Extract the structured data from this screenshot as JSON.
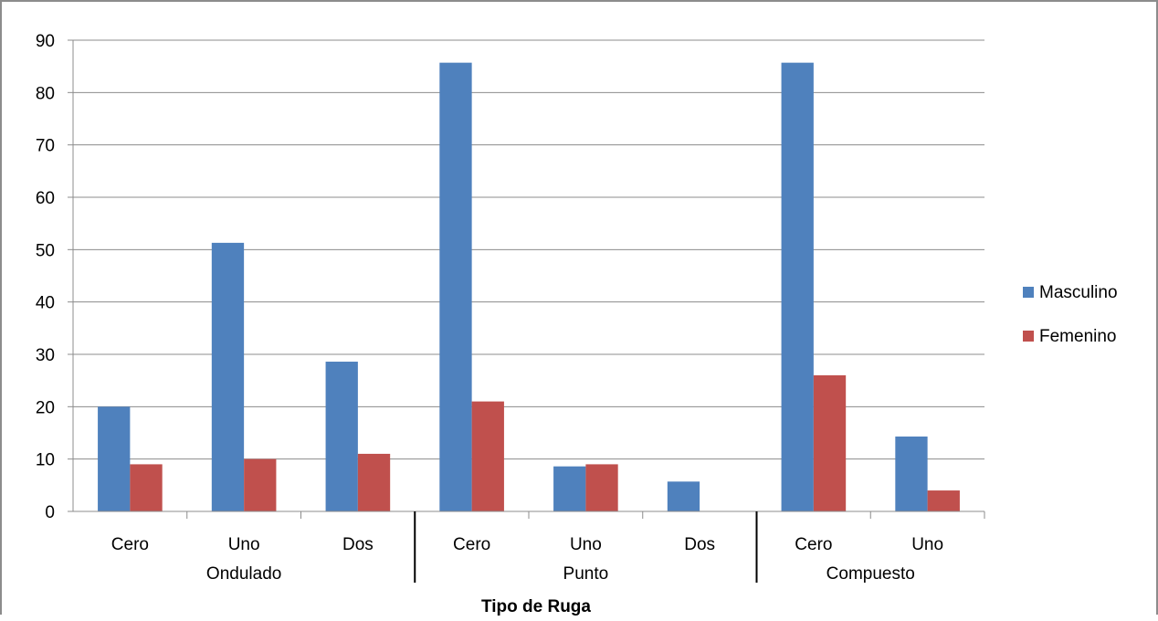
{
  "chart_data": {
    "type": "bar",
    "title": "",
    "xlabel": "Tipo de Ruga",
    "ylabel": "",
    "ylim": [
      0,
      90
    ],
    "yticks": [
      0,
      10,
      20,
      30,
      40,
      50,
      60,
      70,
      80,
      90
    ],
    "grid": true,
    "legend_position": "right",
    "categories": [
      "Cero",
      "Uno",
      "Dos",
      "Cero",
      "Uno",
      "Dos",
      "Cero",
      "Uno"
    ],
    "groups": [
      {
        "label": "Ondulado",
        "categories": [
          "Cero",
          "Uno",
          "Dos"
        ]
      },
      {
        "label": "Punto",
        "categories": [
          "Cero",
          "Uno",
          "Dos"
        ]
      },
      {
        "label": "Compuesto",
        "categories": [
          "Cero",
          "Uno"
        ]
      }
    ],
    "series": [
      {
        "name": "Masculino",
        "color": "#4f81bd",
        "values": [
          20,
          51.3,
          28.6,
          85.7,
          8.6,
          5.7,
          85.7,
          14.3
        ]
      },
      {
        "name": "Femenino",
        "color": "#c0504d",
        "values": [
          9,
          10,
          11,
          21,
          9,
          0,
          26,
          4
        ]
      }
    ]
  }
}
